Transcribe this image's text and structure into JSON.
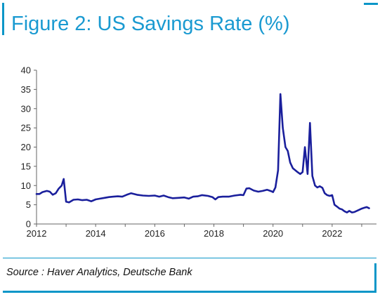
{
  "title": "Figure 2: US Savings Rate (%)",
  "source": "Source : Haver Analytics, Deutsche Bank",
  "colors": {
    "accent": "#1a9ad1",
    "frame": "#0b96c8",
    "series": "#1a1f9c"
  },
  "chart_data": {
    "type": "line",
    "title": "",
    "xlabel": "",
    "ylabel": "",
    "xlim": [
      2012,
      2023.5
    ],
    "ylim": [
      0,
      40
    ],
    "grid": false,
    "y_ticks": [
      "0",
      "5",
      "10",
      "15",
      "20",
      "25",
      "30",
      "35",
      "40"
    ],
    "x_ticks": [
      "2012",
      "2014",
      "2016",
      "2018",
      "2020",
      "2022"
    ],
    "series": [
      {
        "name": "",
        "x": [
          2012.0,
          2012.1,
          2012.2,
          2012.35,
          2012.45,
          2012.55,
          2012.65,
          2012.75,
          2012.85,
          2012.92,
          2013.0,
          2013.1,
          2013.25,
          2013.4,
          2013.55,
          2013.7,
          2013.85,
          2014.0,
          2014.15,
          2014.3,
          2014.45,
          2014.6,
          2014.75,
          2014.9,
          2015.05,
          2015.2,
          2015.4,
          2015.6,
          2015.8,
          2016.0,
          2016.15,
          2016.3,
          2016.45,
          2016.6,
          2016.8,
          2017.0,
          2017.15,
          2017.3,
          2017.45,
          2017.6,
          2017.8,
          2017.95,
          2018.05,
          2018.15,
          2018.3,
          2018.5,
          2018.7,
          2018.9,
          2019.0,
          2019.1,
          2019.2,
          2019.35,
          2019.5,
          2019.65,
          2019.8,
          2019.95,
          2020.0,
          2020.08,
          2020.17,
          2020.25,
          2020.33,
          2020.42,
          2020.5,
          2020.58,
          2020.67,
          2020.75,
          2020.83,
          2020.92,
          2021.0,
          2021.08,
          2021.17,
          2021.25,
          2021.33,
          2021.42,
          2021.5,
          2021.58,
          2021.67,
          2021.75,
          2021.83,
          2021.92,
          2022.0,
          2022.08,
          2022.17,
          2022.25,
          2022.33,
          2022.42,
          2022.5,
          2022.58,
          2022.67,
          2022.75,
          2022.83,
          2022.92,
          2023.0,
          2023.08,
          2023.17,
          2023.25
        ],
        "values": [
          7.8,
          7.8,
          8.3,
          8.6,
          8.4,
          7.6,
          8.0,
          9.2,
          10.0,
          11.7,
          5.8,
          5.6,
          6.3,
          6.4,
          6.2,
          6.3,
          5.9,
          6.4,
          6.6,
          6.8,
          7.0,
          7.1,
          7.2,
          7.1,
          7.6,
          8.0,
          7.6,
          7.4,
          7.3,
          7.4,
          7.1,
          7.4,
          7.0,
          6.7,
          6.8,
          6.9,
          6.6,
          7.1,
          7.2,
          7.5,
          7.3,
          7.0,
          6.4,
          7.0,
          7.1,
          7.1,
          7.4,
          7.6,
          7.5,
          9.2,
          9.3,
          8.7,
          8.4,
          8.6,
          8.9,
          8.5,
          8.3,
          9.5,
          14.0,
          33.8,
          25.0,
          20.0,
          19.0,
          16.0,
          14.5,
          14.0,
          13.5,
          13.0,
          13.5,
          20.0,
          13.0,
          26.3,
          12.5,
          10.0,
          9.5,
          9.8,
          9.4,
          8.0,
          7.5,
          7.3,
          7.5,
          5.0,
          4.5,
          4.0,
          3.8,
          3.3,
          3.0,
          3.4,
          3.0,
          3.1,
          3.4,
          3.7,
          4.0,
          4.2,
          4.4,
          4.1
        ]
      }
    ]
  }
}
